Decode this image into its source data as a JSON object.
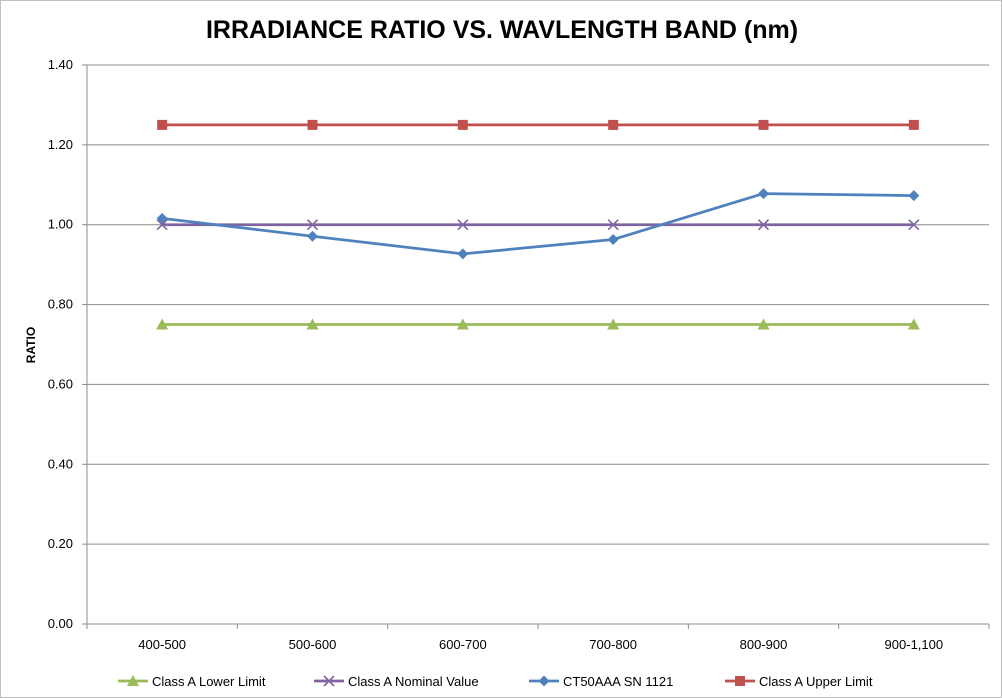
{
  "chart_data": {
    "type": "line",
    "title": "IRRADIANCE RATIO VS. WAVLENGTH BAND (nm)",
    "xlabel": "",
    "ylabel": "RATIO",
    "categories": [
      "400-500",
      "500-600",
      "600-700",
      "700-800",
      "800-900",
      "900-1,100"
    ],
    "ylim": [
      0,
      1.4
    ],
    "yticks": [
      "0.00",
      "0.20",
      "0.40",
      "0.60",
      "0.80",
      "1.00",
      "1.20",
      "1.40"
    ],
    "grid": true,
    "legend_position": "bottom",
    "series": [
      {
        "name": "Class A Lower Limit",
        "values": [
          0.75,
          0.75,
          0.75,
          0.75,
          0.75,
          0.75
        ],
        "color": "#9bbb59",
        "marker": "triangle"
      },
      {
        "name": "Class A Nominal Value",
        "values": [
          1.0,
          1.0,
          1.0,
          1.0,
          1.0,
          1.0
        ],
        "color": "#8064a2",
        "marker": "x"
      },
      {
        "name": "CT50AAA SN 1121",
        "values": [
          1.016,
          0.971,
          0.927,
          0.963,
          1.078,
          1.073
        ],
        "color": "#4f81bd",
        "marker": "diamond"
      },
      {
        "name": "Class A Upper Limit",
        "values": [
          1.25,
          1.25,
          1.25,
          1.25,
          1.25,
          1.25
        ],
        "color": "#c0504d",
        "marker": "square"
      }
    ]
  }
}
